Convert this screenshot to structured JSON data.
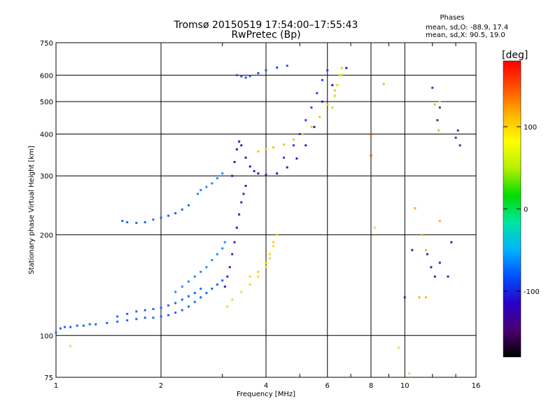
{
  "chart_data": {
    "type": "scatter",
    "title": "Tromsø 20150519 17:54:00–17:55:43",
    "subtitle": "RwPretec (Bp)",
    "xlabel": "Frequency [MHz]",
    "ylabel": "Stationary phase Virtual Height [km]",
    "x_scale": "log",
    "y_scale": "log",
    "xlim": [
      1,
      16
    ],
    "ylim": [
      75,
      750
    ],
    "x_ticks": [
      {
        "value": 1,
        "label": "1"
      },
      {
        "value": 2,
        "label": "2"
      },
      {
        "value": 4,
        "label": "4"
      },
      {
        "value": 6,
        "label": "6"
      },
      {
        "value": 8,
        "label": "8"
      },
      {
        "value": 10,
        "label": "10"
      },
      {
        "value": 16,
        "label": "16"
      }
    ],
    "y_ticks": [
      {
        "value": 75,
        "label": "75"
      },
      {
        "value": 100,
        "label": "100"
      },
      {
        "value": 200,
        "label": "200"
      },
      {
        "value": 300,
        "label": "300"
      },
      {
        "value": 400,
        "label": "400"
      },
      {
        "value": 500,
        "label": "500"
      },
      {
        "value": 600,
        "label": "600"
      },
      {
        "value": 750,
        "label": "750"
      }
    ],
    "grid": true,
    "color_variable": "phase",
    "colorbar": {
      "label": "[deg]",
      "range": [
        -180,
        180
      ],
      "ticks": [
        {
          "value": 100,
          "label": "100"
        },
        {
          "value": 0,
          "label": "0"
        },
        {
          "value": -100,
          "label": "-100"
        }
      ],
      "colors": [
        "#000000",
        "#4b0070",
        "#2a00c8",
        "#0050ff",
        "#00b4ff",
        "#00e6a0",
        "#00dc00",
        "#b4f000",
        "#ffff00",
        "#ffb400",
        "#ff5000",
        "#ff0000"
      ]
    },
    "annotation": {
      "heading": "Phases",
      "line_o": "mean, sd,O: -88.9, 17.4",
      "line_x": "mean, sd,X:  90.5, 19.0"
    },
    "series": [
      {
        "color": "#1e64ff",
        "points": [
          [
            1.0,
            102
          ],
          [
            1.03,
            105
          ],
          [
            1.06,
            106
          ],
          [
            1.1,
            106
          ],
          [
            1.15,
            107
          ],
          [
            1.2,
            107
          ],
          [
            1.25,
            108
          ],
          [
            1.3,
            108
          ],
          [
            1.4,
            109
          ],
          [
            1.5,
            110
          ],
          [
            1.6,
            111
          ],
          [
            1.7,
            112
          ],
          [
            1.8,
            113
          ],
          [
            1.9,
            113
          ],
          [
            2.0,
            114
          ],
          [
            2.1,
            115
          ],
          [
            2.2,
            117
          ],
          [
            2.3,
            119
          ],
          [
            2.4,
            122
          ],
          [
            2.5,
            126
          ],
          [
            2.6,
            130
          ],
          [
            2.7,
            134
          ],
          [
            2.8,
            138
          ],
          [
            2.9,
            142
          ],
          [
            3.0,
            146
          ]
        ]
      },
      {
        "color": "#1e64ff",
        "points": [
          [
            1.5,
            114
          ],
          [
            1.6,
            116
          ],
          [
            1.7,
            118
          ],
          [
            1.8,
            119
          ],
          [
            1.9,
            120
          ],
          [
            2.0,
            121
          ],
          [
            2.1,
            123
          ],
          [
            2.2,
            125
          ],
          [
            2.3,
            128
          ],
          [
            2.4,
            131
          ],
          [
            2.5,
            134
          ],
          [
            2.6,
            138
          ]
        ]
      },
      {
        "color": "#1e8cff",
        "points": [
          [
            2.2,
            135
          ],
          [
            2.3,
            140
          ],
          [
            2.4,
            145
          ],
          [
            2.5,
            150
          ],
          [
            2.6,
            155
          ],
          [
            2.7,
            160
          ],
          [
            2.8,
            168
          ],
          [
            2.9,
            175
          ],
          [
            3.0,
            182
          ],
          [
            3.05,
            190
          ]
        ]
      },
      {
        "color": "#1e64ff",
        "points": [
          [
            1.55,
            220
          ],
          [
            1.6,
            218
          ],
          [
            1.7,
            217
          ],
          [
            1.8,
            218
          ],
          [
            1.9,
            222
          ],
          [
            2.0,
            225
          ],
          [
            2.1,
            228
          ],
          [
            2.2,
            232
          ],
          [
            2.3,
            238
          ],
          [
            2.4,
            245
          ]
        ]
      },
      {
        "color": "#1e8cff",
        "points": [
          [
            2.55,
            265
          ],
          [
            2.6,
            272
          ],
          [
            2.7,
            278
          ],
          [
            2.8,
            285
          ],
          [
            2.9,
            295
          ],
          [
            3.0,
            305
          ]
        ]
      },
      {
        "color": "#3c1ecc",
        "points": [
          [
            3.05,
            140
          ],
          [
            3.1,
            150
          ],
          [
            3.15,
            160
          ],
          [
            3.2,
            175
          ],
          [
            3.25,
            190
          ],
          [
            3.3,
            210
          ],
          [
            3.35,
            230
          ],
          [
            3.4,
            250
          ],
          [
            3.45,
            265
          ],
          [
            3.5,
            280
          ]
        ]
      },
      {
        "color": "#2a1eb4",
        "points": [
          [
            3.2,
            300
          ],
          [
            3.25,
            330
          ],
          [
            3.3,
            360
          ],
          [
            3.35,
            380
          ],
          [
            3.4,
            370
          ],
          [
            3.5,
            340
          ],
          [
            3.6,
            320
          ],
          [
            3.7,
            310
          ],
          [
            3.8,
            305
          ],
          [
            4.0,
            302
          ],
          [
            4.3,
            305
          ],
          [
            4.6,
            318
          ],
          [
            4.9,
            338
          ],
          [
            5.2,
            370
          ],
          [
            5.5,
            420
          ],
          [
            5.8,
            500
          ],
          [
            6.2,
            560
          ],
          [
            6.8,
            630
          ]
        ]
      },
      {
        "color": "#2a3cff",
        "points": [
          [
            4.5,
            340
          ],
          [
            4.8,
            370
          ],
          [
            5.0,
            400
          ],
          [
            5.2,
            440
          ],
          [
            5.4,
            480
          ],
          [
            5.6,
            530
          ],
          [
            5.8,
            580
          ],
          [
            6.0,
            620
          ]
        ]
      },
      {
        "color": "#1e50ff",
        "points": [
          [
            3.3,
            600
          ],
          [
            3.4,
            595
          ],
          [
            3.5,
            590
          ],
          [
            3.6,
            596
          ],
          [
            3.8,
            608
          ],
          [
            4.0,
            620
          ],
          [
            4.3,
            632
          ],
          [
            4.6,
            640
          ]
        ]
      },
      {
        "color": "#f0dc14",
        "points": [
          [
            3.1,
            122
          ],
          [
            3.2,
            128
          ],
          [
            3.4,
            135
          ],
          [
            3.6,
            142
          ],
          [
            3.8,
            150
          ],
          [
            4.0,
            160
          ],
          [
            4.1,
            170
          ],
          [
            4.2,
            185
          ],
          [
            4.3,
            200
          ]
        ]
      },
      {
        "color": "#ffd200",
        "points": [
          [
            3.6,
            150
          ],
          [
            3.8,
            155
          ],
          [
            4.0,
            165
          ],
          [
            4.1,
            175
          ],
          [
            4.2,
            190
          ]
        ]
      },
      {
        "color": "#f0c814",
        "points": [
          [
            3.8,
            355
          ],
          [
            4.0,
            360
          ],
          [
            4.2,
            365
          ],
          [
            4.5,
            372
          ],
          [
            4.8,
            385
          ],
          [
            5.1,
            400
          ],
          [
            5.4,
            420
          ],
          [
            5.7,
            450
          ],
          [
            6.0,
            490
          ],
          [
            6.3,
            540
          ],
          [
            6.6,
            600
          ]
        ]
      },
      {
        "color": "#b4f000",
        "points": [
          [
            6.2,
            480
          ],
          [
            6.3,
            520
          ],
          [
            6.4,
            560
          ],
          [
            6.5,
            600
          ],
          [
            6.6,
            630
          ]
        ]
      },
      {
        "color": "#ff3c00",
        "points": [
          [
            8.0,
            400
          ],
          [
            8.0,
            345
          ]
        ]
      },
      {
        "color": "#b4dc14",
        "points": [
          [
            8.7,
            565
          ],
          [
            12.2,
            490
          ],
          [
            12.5,
            410
          ]
        ]
      },
      {
        "color": "#3c3c8c",
        "points": [
          [
            12.0,
            550
          ],
          [
            12.4,
            440
          ],
          [
            12.6,
            480
          ],
          [
            14.0,
            390
          ],
          [
            14.2,
            410
          ],
          [
            14.4,
            370
          ]
        ]
      },
      {
        "color": "#2a2aaa",
        "points": [
          [
            10.0,
            130
          ],
          [
            10.5,
            180
          ],
          [
            11.6,
            175
          ],
          [
            11.9,
            160
          ],
          [
            12.2,
            150
          ],
          [
            12.6,
            165
          ],
          [
            13.3,
            150
          ],
          [
            13.6,
            190
          ]
        ]
      },
      {
        "color": "#ffb400",
        "points": [
          [
            10.7,
            240
          ],
          [
            11.2,
            200
          ],
          [
            11.5,
            180
          ],
          [
            12.6,
            220
          ],
          [
            11.0,
            130
          ],
          [
            11.5,
            130
          ]
        ]
      },
      {
        "color": "#dcdc78",
        "points": [
          [
            1.1,
            93
          ],
          [
            9.6,
            92
          ],
          [
            10.3,
            77
          ],
          [
            8.2,
            210
          ],
          [
            12.6,
            500
          ]
        ]
      }
    ]
  }
}
